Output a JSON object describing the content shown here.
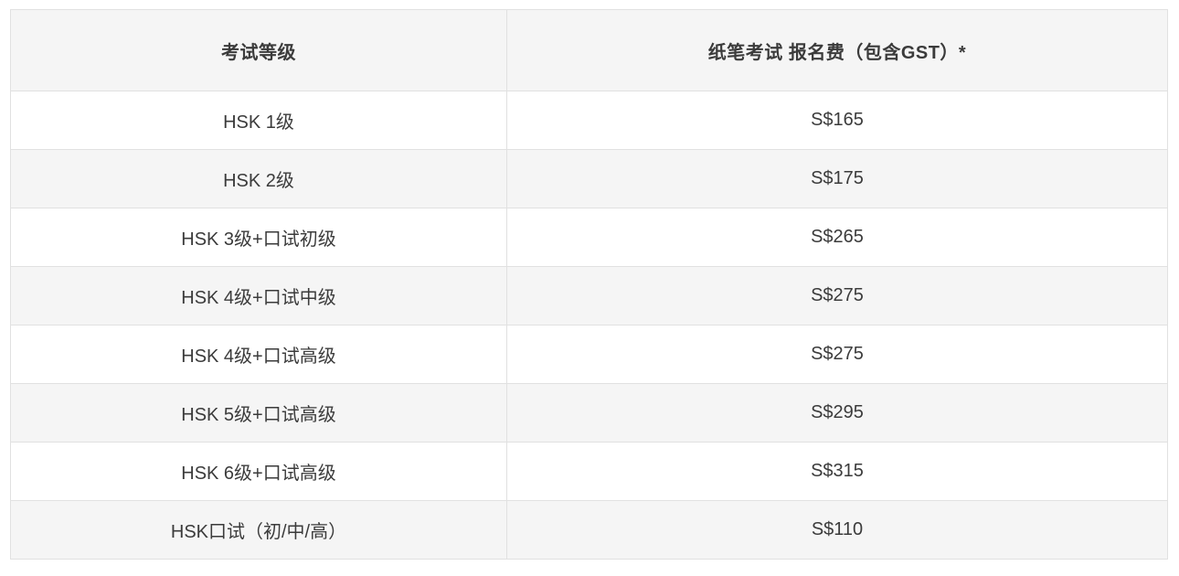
{
  "table": {
    "columns": [
      {
        "id": "exam_level",
        "label": "考试等级"
      },
      {
        "id": "fee",
        "label": "纸笔考试 报名费（包含GST）*"
      }
    ],
    "rows": [
      {
        "level": "HSK 1级",
        "fee": "S$165"
      },
      {
        "level": "HSK 2级",
        "fee": "S$175"
      },
      {
        "level": "HSK 3级+口试初级",
        "fee": "S$265"
      },
      {
        "level": "HSK 4级+口试中级",
        "fee": "S$275"
      },
      {
        "level": "HSK 4级+口试高级",
        "fee": "S$275"
      },
      {
        "level": "HSK 5级+口试高级",
        "fee": "S$295"
      },
      {
        "level": "HSK 6级+口试高级",
        "fee": "S$315"
      },
      {
        "level": "HSK口试（初/中/高）",
        "fee": "S$110"
      }
    ],
    "colors": {
      "header_bg": "#f5f5f5",
      "row_bg": "#ffffff",
      "row_alt_bg": "#f5f5f5",
      "border": "#e1e1e1",
      "text": "#3b3b3b",
      "page_bg": "#ffffff"
    }
  }
}
